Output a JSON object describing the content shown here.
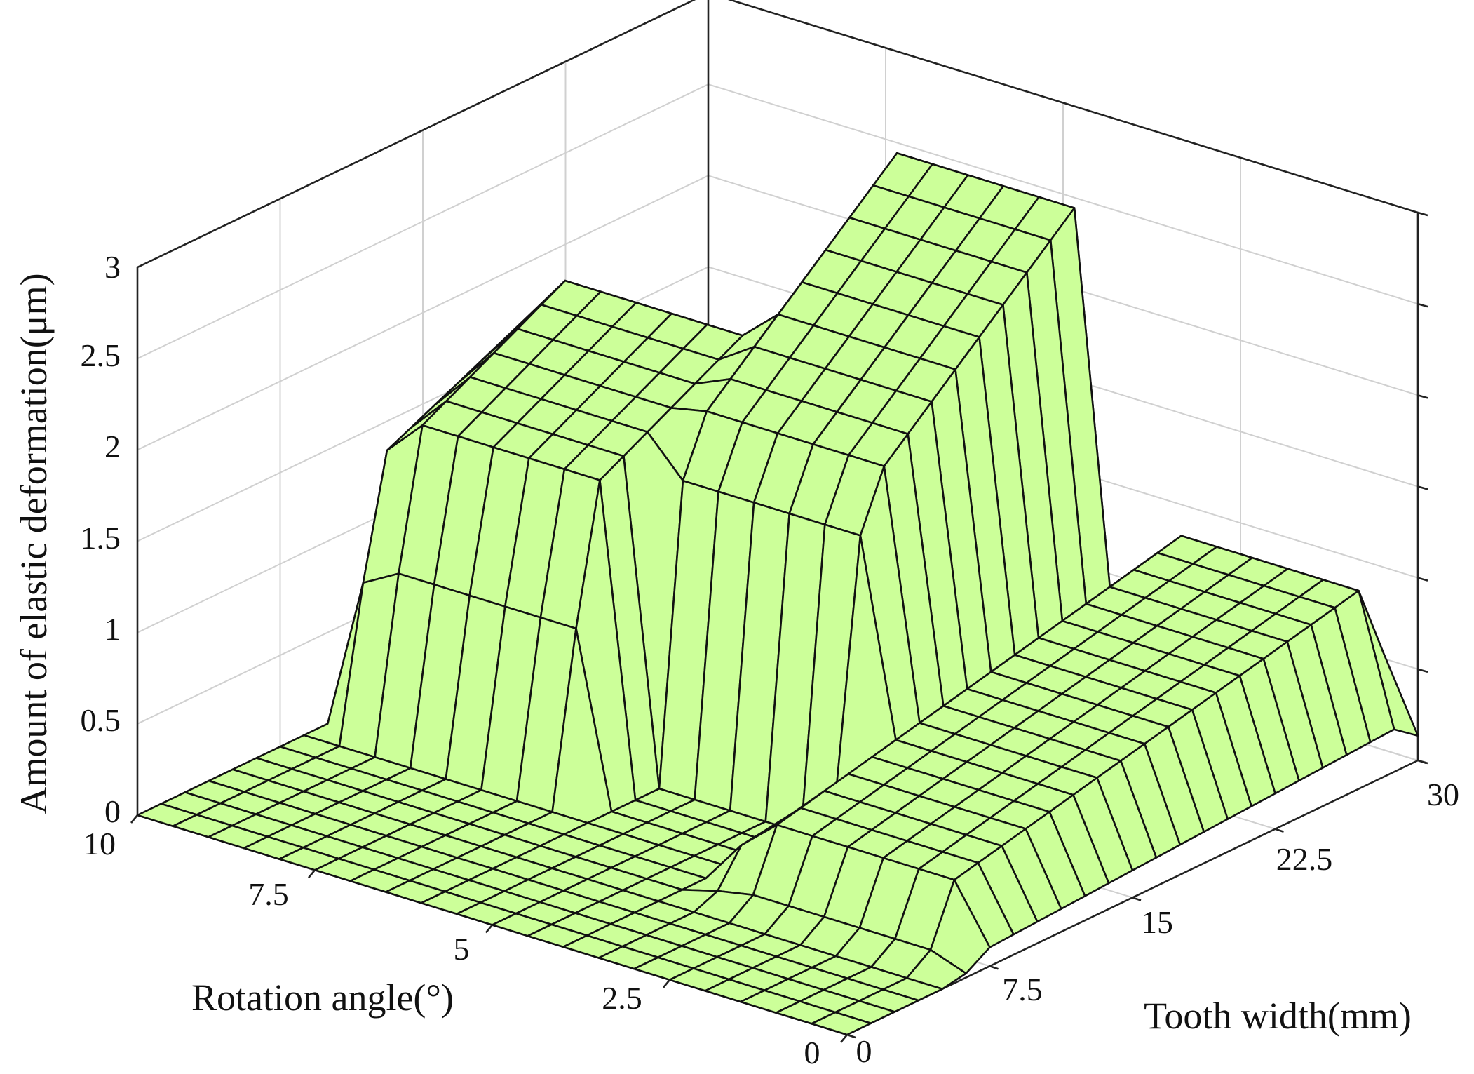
{
  "chart_data": {
    "type": "surface",
    "colors": {
      "surface": "#ccff99",
      "mesh": "#111111"
    },
    "axes": {
      "x": {
        "label": "Rotation angle(°)",
        "range": [
          0,
          10
        ],
        "ticks": [
          "0",
          "2.5",
          "5",
          "7.5",
          "10"
        ]
      },
      "y": {
        "label": "Tooth width(mm)",
        "range": [
          0,
          30
        ],
        "ticks": [
          "0",
          "7.5",
          "15",
          "22.5",
          "30"
        ]
      },
      "z": {
        "label": "Amount of elastic deformation(μm)",
        "range": [
          0,
          3
        ],
        "ticks": [
          "0",
          "0.5",
          "1",
          "1.5",
          "2",
          "2.5",
          "3"
        ]
      }
    },
    "grid": true,
    "mesh_resolution": {
      "x_steps": 20,
      "y_steps": 24
    },
    "features": [
      {
        "name": "",
        "x_range": [
          6.5,
          9.4
        ],
        "y_range": [
          10.5,
          19.5
        ],
        "height": 1.65,
        "peak": 2.15
      },
      {
        "name": "",
        "x_range": [
          3.4,
          6.3
        ],
        "y_range": [
          14.0,
          25.5
        ],
        "height": 1.85,
        "peak": 2.9
      },
      {
        "name": "",
        "x_range": [
          0.3,
          3.3
        ],
        "y_range": [
          7.0,
          29.5
        ],
        "height": 0.4,
        "peak": 0.95
      }
    ]
  }
}
